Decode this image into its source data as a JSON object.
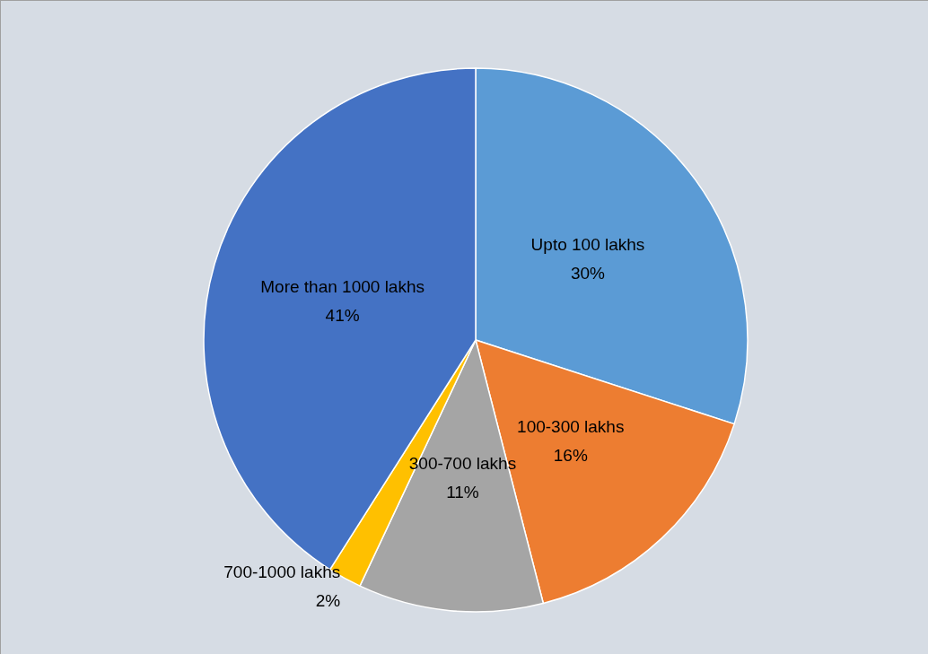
{
  "chart_data": {
    "type": "pie",
    "categories": [
      "Upto 100 lakhs",
      "100-300 lakhs",
      "300-700 lakhs",
      "700-1000 lakhs",
      "More than 1000 lakhs"
    ],
    "values": [
      30,
      16,
      11,
      2,
      41
    ],
    "colors": [
      "#5b9bd5",
      "#ed7d31",
      "#a5a5a5",
      "#ffc000",
      "#4472c4"
    ],
    "value_labels": [
      "30%",
      "16%",
      "11%",
      "2%",
      "41%"
    ],
    "legend": false
  }
}
